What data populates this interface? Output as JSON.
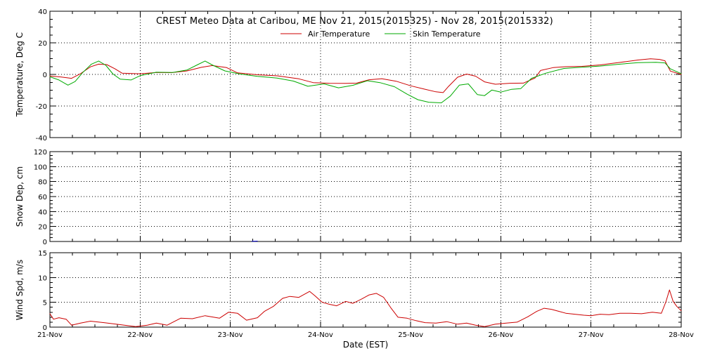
{
  "chart_data": [
    {
      "type": "line",
      "title": "CREST Meteo Data at Caribou, ME   Nov 21, 2015(2015325) - Nov 28, 2015(2015332)",
      "xlabel": "Date (EST)",
      "ylabel": "Temperature, Deg C",
      "x_domain": [
        "21-Nov",
        "28-Nov"
      ],
      "x_ticks": [
        "21-Nov",
        "22-Nov",
        "23-Nov",
        "24-Nov",
        "25-Nov",
        "26-Nov",
        "27-Nov",
        "28-Nov"
      ],
      "ylim": [
        -40,
        40
      ],
      "y_ticks": [
        -40,
        -20,
        0,
        20,
        40
      ],
      "grid": true,
      "legend_position": "top-center",
      "series": [
        {
          "name": "Air Temperature",
          "color": "#cc0000",
          "points": [
            {
              "x": 0.0,
              "y": -1.0
            },
            {
              "x": 0.12,
              "y": -1.6
            },
            {
              "x": 0.24,
              "y": -2.5
            },
            {
              "x": 0.34,
              "y": 0.5
            },
            {
              "x": 0.45,
              "y": 4.8
            },
            {
              "x": 0.54,
              "y": 6.5
            },
            {
              "x": 0.63,
              "y": 6.2
            },
            {
              "x": 0.72,
              "y": 3.6
            },
            {
              "x": 0.8,
              "y": 0.8
            },
            {
              "x": 1.0,
              "y": 0.4
            },
            {
              "x": 1.18,
              "y": 1.2
            },
            {
              "x": 1.35,
              "y": 1.1
            },
            {
              "x": 1.52,
              "y": 2.2
            },
            {
              "x": 1.68,
              "y": 4.5
            },
            {
              "x": 1.8,
              "y": 5.6
            },
            {
              "x": 1.96,
              "y": 4.3
            },
            {
              "x": 2.08,
              "y": 1.0
            },
            {
              "x": 2.3,
              "y": -0.2
            },
            {
              "x": 2.52,
              "y": -0.9
            },
            {
              "x": 2.76,
              "y": -2.8
            },
            {
              "x": 2.92,
              "y": -5.2
            },
            {
              "x": 3.1,
              "y": -5.6
            },
            {
              "x": 3.28,
              "y": -5.7
            },
            {
              "x": 3.4,
              "y": -5.5
            },
            {
              "x": 3.54,
              "y": -3.4
            },
            {
              "x": 3.68,
              "y": -2.7
            },
            {
              "x": 3.84,
              "y": -4.3
            },
            {
              "x": 4.0,
              "y": -7.2
            },
            {
              "x": 4.15,
              "y": -9.3
            },
            {
              "x": 4.28,
              "y": -11.0
            },
            {
              "x": 4.36,
              "y": -11.5
            },
            {
              "x": 4.42,
              "y": -7.6
            },
            {
              "x": 4.52,
              "y": -1.8
            },
            {
              "x": 4.62,
              "y": 0.2
            },
            {
              "x": 4.72,
              "y": -1.1
            },
            {
              "x": 4.82,
              "y": -4.7
            },
            {
              "x": 4.94,
              "y": -6.2
            },
            {
              "x": 5.1,
              "y": -5.6
            },
            {
              "x": 5.25,
              "y": -5.5
            },
            {
              "x": 5.38,
              "y": -2.2
            },
            {
              "x": 5.44,
              "y": 2.5
            },
            {
              "x": 5.58,
              "y": 4.3
            },
            {
              "x": 5.72,
              "y": 4.9
            },
            {
              "x": 5.9,
              "y": 5.1
            },
            {
              "x": 6.1,
              "y": 6.0
            },
            {
              "x": 6.32,
              "y": 7.6
            },
            {
              "x": 6.52,
              "y": 9.1
            },
            {
              "x": 6.66,
              "y": 9.9
            },
            {
              "x": 6.76,
              "y": 9.5
            },
            {
              "x": 6.82,
              "y": 8.6
            },
            {
              "x": 6.88,
              "y": 2.1
            },
            {
              "x": 7.0,
              "y": 0.0
            }
          ]
        },
        {
          "name": "Skin Temperature",
          "color": "#00aa00",
          "points": [
            {
              "x": 0.0,
              "y": -1.5
            },
            {
              "x": 0.1,
              "y": -3.5
            },
            {
              "x": 0.2,
              "y": -6.8
            },
            {
              "x": 0.28,
              "y": -4.5
            },
            {
              "x": 0.36,
              "y": 1.0
            },
            {
              "x": 0.46,
              "y": 6.5
            },
            {
              "x": 0.54,
              "y": 8.5
            },
            {
              "x": 0.62,
              "y": 5.8
            },
            {
              "x": 0.7,
              "y": 0.2
            },
            {
              "x": 0.78,
              "y": -3.0
            },
            {
              "x": 0.9,
              "y": -3.5
            },
            {
              "x": 1.0,
              "y": -0.8
            },
            {
              "x": 1.18,
              "y": 1.4
            },
            {
              "x": 1.36,
              "y": 1.2
            },
            {
              "x": 1.52,
              "y": 2.8
            },
            {
              "x": 1.64,
              "y": 6.2
            },
            {
              "x": 1.72,
              "y": 8.5
            },
            {
              "x": 1.8,
              "y": 6.0
            },
            {
              "x": 1.94,
              "y": 2.2
            },
            {
              "x": 2.1,
              "y": 0.3
            },
            {
              "x": 2.3,
              "y": -1.2
            },
            {
              "x": 2.52,
              "y": -2.3
            },
            {
              "x": 2.7,
              "y": -4.2
            },
            {
              "x": 2.86,
              "y": -7.5
            },
            {
              "x": 3.04,
              "y": -6.0
            },
            {
              "x": 3.2,
              "y": -8.5
            },
            {
              "x": 3.36,
              "y": -6.9
            },
            {
              "x": 3.52,
              "y": -4.0
            },
            {
              "x": 3.66,
              "y": -5.2
            },
            {
              "x": 3.82,
              "y": -7.8
            },
            {
              "x": 3.96,
              "y": -12.5
            },
            {
              "x": 4.08,
              "y": -16.0
            },
            {
              "x": 4.2,
              "y": -17.6
            },
            {
              "x": 4.34,
              "y": -18.0
            },
            {
              "x": 4.44,
              "y": -13.7
            },
            {
              "x": 4.54,
              "y": -6.8
            },
            {
              "x": 4.64,
              "y": -6.0
            },
            {
              "x": 4.74,
              "y": -12.8
            },
            {
              "x": 4.82,
              "y": -13.4
            },
            {
              "x": 4.9,
              "y": -9.9
            },
            {
              "x": 5.0,
              "y": -11.2
            },
            {
              "x": 5.12,
              "y": -9.4
            },
            {
              "x": 5.22,
              "y": -9.0
            },
            {
              "x": 5.34,
              "y": -2.5
            },
            {
              "x": 5.5,
              "y": 0.8
            },
            {
              "x": 5.7,
              "y": 3.8
            },
            {
              "x": 5.9,
              "y": 4.6
            },
            {
              "x": 6.1,
              "y": 5.3
            },
            {
              "x": 6.32,
              "y": 6.5
            },
            {
              "x": 6.52,
              "y": 7.4
            },
            {
              "x": 6.72,
              "y": 7.7
            },
            {
              "x": 6.82,
              "y": 7.3
            },
            {
              "x": 6.88,
              "y": 3.5
            },
            {
              "x": 7.0,
              "y": 0.5
            }
          ]
        }
      ]
    },
    {
      "type": "line",
      "ylabel": "Snow Dep, cm",
      "x_domain": [
        "21-Nov",
        "28-Nov"
      ],
      "ylim": [
        0,
        120
      ],
      "y_ticks": [
        0,
        20,
        40,
        60,
        80,
        100,
        120
      ],
      "grid": true,
      "series": [
        {
          "color": "#0000cc",
          "points": [
            {
              "x": 2.24,
              "y": 0.4
            },
            {
              "x": 2.27,
              "y": 0.4
            },
            {
              "x": 2.3,
              "y": 0.5
            }
          ]
        }
      ]
    },
    {
      "type": "line",
      "ylabel": "Wind Spd, m/s",
      "x_domain": [
        "21-Nov",
        "28-Nov"
      ],
      "x_ticks": [
        "21-Nov",
        "22-Nov",
        "23-Nov",
        "24-Nov",
        "25-Nov",
        "26-Nov",
        "27-Nov",
        "28-Nov"
      ],
      "ylim": [
        0,
        15
      ],
      "y_ticks": [
        0,
        5,
        10,
        15
      ],
      "grid": true,
      "series": [
        {
          "color": "#cc0000",
          "points": [
            {
              "x": 0.0,
              "y": 2.7
            },
            {
              "x": 0.04,
              "y": 1.6
            },
            {
              "x": 0.1,
              "y": 1.9
            },
            {
              "x": 0.18,
              "y": 1.6
            },
            {
              "x": 0.24,
              "y": 0.4
            },
            {
              "x": 0.34,
              "y": 0.8
            },
            {
              "x": 0.45,
              "y": 1.2
            },
            {
              "x": 0.6,
              "y": 0.9
            },
            {
              "x": 0.78,
              "y": 0.5
            },
            {
              "x": 0.95,
              "y": 0.1
            },
            {
              "x": 1.08,
              "y": 0.4
            },
            {
              "x": 1.18,
              "y": 0.8
            },
            {
              "x": 1.3,
              "y": 0.4
            },
            {
              "x": 1.45,
              "y": 1.8
            },
            {
              "x": 1.58,
              "y": 1.7
            },
            {
              "x": 1.72,
              "y": 2.3
            },
            {
              "x": 1.88,
              "y": 1.8
            },
            {
              "x": 1.98,
              "y": 3.0
            },
            {
              "x": 2.08,
              "y": 2.8
            },
            {
              "x": 2.18,
              "y": 1.4
            },
            {
              "x": 2.3,
              "y": 1.9
            },
            {
              "x": 2.38,
              "y": 3.2
            },
            {
              "x": 2.48,
              "y": 4.2
            },
            {
              "x": 2.58,
              "y": 5.8
            },
            {
              "x": 2.66,
              "y": 6.2
            },
            {
              "x": 2.76,
              "y": 6.0
            },
            {
              "x": 2.88,
              "y": 7.2
            },
            {
              "x": 2.94,
              "y": 6.3
            },
            {
              "x": 3.02,
              "y": 5.0
            },
            {
              "x": 3.1,
              "y": 4.6
            },
            {
              "x": 3.18,
              "y": 4.3
            },
            {
              "x": 3.28,
              "y": 5.2
            },
            {
              "x": 3.36,
              "y": 4.8
            },
            {
              "x": 3.46,
              "y": 5.7
            },
            {
              "x": 3.54,
              "y": 6.5
            },
            {
              "x": 3.62,
              "y": 6.8
            },
            {
              "x": 3.7,
              "y": 6.0
            },
            {
              "x": 3.78,
              "y": 3.9
            },
            {
              "x": 3.86,
              "y": 2.0
            },
            {
              "x": 3.96,
              "y": 1.8
            },
            {
              "x": 4.06,
              "y": 1.3
            },
            {
              "x": 4.16,
              "y": 0.9
            },
            {
              "x": 4.28,
              "y": 0.8
            },
            {
              "x": 4.4,
              "y": 1.1
            },
            {
              "x": 4.52,
              "y": 0.6
            },
            {
              "x": 4.62,
              "y": 0.8
            },
            {
              "x": 4.72,
              "y": 0.4
            },
            {
              "x": 4.82,
              "y": 0.1
            },
            {
              "x": 4.94,
              "y": 0.6
            },
            {
              "x": 5.06,
              "y": 0.8
            },
            {
              "x": 5.18,
              "y": 1.0
            },
            {
              "x": 5.3,
              "y": 2.1
            },
            {
              "x": 5.4,
              "y": 3.2
            },
            {
              "x": 5.48,
              "y": 3.8
            },
            {
              "x": 5.56,
              "y": 3.6
            },
            {
              "x": 5.64,
              "y": 3.2
            },
            {
              "x": 5.72,
              "y": 2.8
            },
            {
              "x": 5.82,
              "y": 2.6
            },
            {
              "x": 5.92,
              "y": 2.4
            },
            {
              "x": 6.0,
              "y": 2.3
            },
            {
              "x": 6.1,
              "y": 2.6
            },
            {
              "x": 6.2,
              "y": 2.5
            },
            {
              "x": 6.32,
              "y": 2.8
            },
            {
              "x": 6.44,
              "y": 2.8
            },
            {
              "x": 6.56,
              "y": 2.7
            },
            {
              "x": 6.68,
              "y": 3.0
            },
            {
              "x": 6.78,
              "y": 2.8
            },
            {
              "x": 6.83,
              "y": 5.1
            },
            {
              "x": 6.87,
              "y": 7.5
            },
            {
              "x": 6.91,
              "y": 5.2
            },
            {
              "x": 6.95,
              "y": 4.2
            },
            {
              "x": 7.0,
              "y": 3.3
            }
          ]
        }
      ]
    }
  ]
}
